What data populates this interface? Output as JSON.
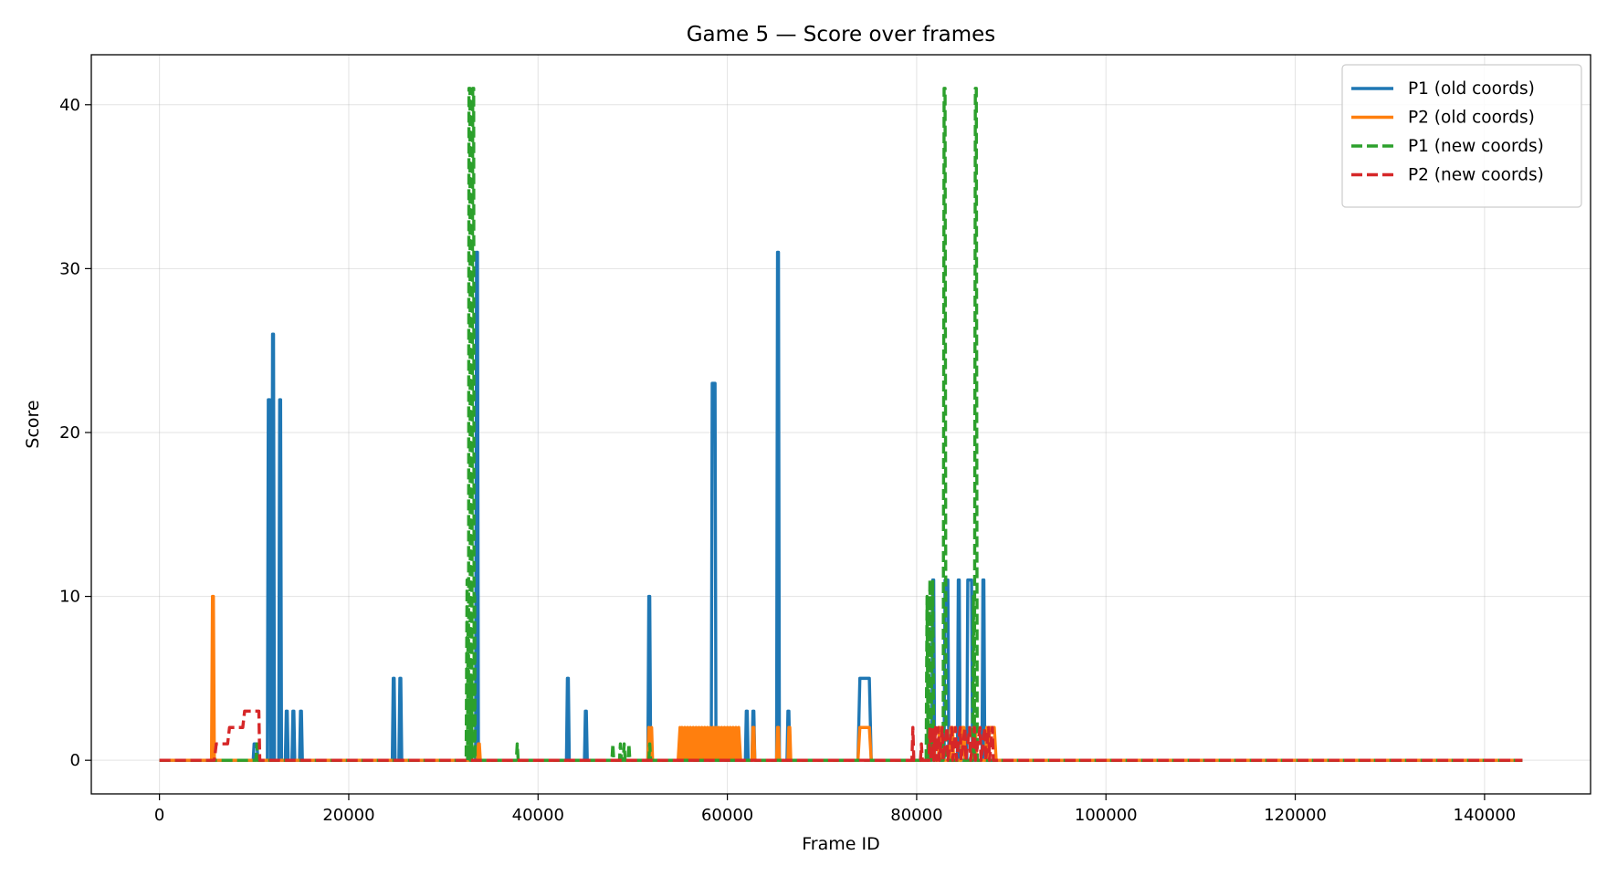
{
  "chart_data": {
    "type": "line",
    "title": "Game 5 — Score over frames",
    "xlabel": "Frame ID",
    "ylabel": "Score",
    "xlim": [
      -7200,
      151200
    ],
    "ylim": [
      -2.05,
      43.05
    ],
    "xticks": [
      0,
      20000,
      40000,
      60000,
      80000,
      100000,
      120000,
      140000
    ],
    "xtick_labels": [
      "0",
      "20000",
      "40000",
      "60000",
      "80000",
      "100000",
      "120000",
      "140000"
    ],
    "yticks": [
      0,
      10,
      20,
      30,
      40
    ],
    "ytick_labels": [
      "0",
      "10",
      "20",
      "30",
      "40"
    ],
    "grid": true,
    "legend_position": "upper right",
    "series": [
      {
        "name": "P1 (old coords)",
        "color": "#1f77b4",
        "dash": "solid",
        "points": [
          [
            0,
            0
          ],
          [
            9900,
            0
          ],
          [
            10000,
            1
          ],
          [
            10300,
            1
          ],
          [
            10400,
            0
          ],
          [
            11400,
            0
          ],
          [
            11500,
            22
          ],
          [
            11650,
            22
          ],
          [
            11750,
            0
          ],
          [
            11850,
            0
          ],
          [
            11950,
            26
          ],
          [
            12050,
            26
          ],
          [
            12150,
            0
          ],
          [
            12600,
            0
          ],
          [
            12700,
            22
          ],
          [
            12800,
            22
          ],
          [
            12900,
            0
          ],
          [
            13300,
            0
          ],
          [
            13400,
            3
          ],
          [
            13500,
            3
          ],
          [
            13600,
            0
          ],
          [
            14000,
            0
          ],
          [
            14100,
            3
          ],
          [
            14200,
            3
          ],
          [
            14300,
            0
          ],
          [
            14800,
            0
          ],
          [
            14900,
            3
          ],
          [
            15000,
            3
          ],
          [
            15100,
            0
          ],
          [
            24600,
            0
          ],
          [
            24700,
            5
          ],
          [
            24800,
            5
          ],
          [
            24900,
            0
          ],
          [
            25300,
            0
          ],
          [
            25400,
            5
          ],
          [
            25500,
            5
          ],
          [
            25600,
            0
          ],
          [
            33400,
            0
          ],
          [
            33500,
            31
          ],
          [
            33600,
            31
          ],
          [
            33700,
            0
          ],
          [
            43000,
            0
          ],
          [
            43100,
            5
          ],
          [
            43200,
            5
          ],
          [
            43300,
            0
          ],
          [
            44900,
            0
          ],
          [
            45000,
            3
          ],
          [
            45100,
            3
          ],
          [
            45200,
            0
          ],
          [
            51600,
            0
          ],
          [
            51700,
            10
          ],
          [
            51800,
            10
          ],
          [
            51900,
            0
          ],
          [
            58300,
            0
          ],
          [
            58400,
            23
          ],
          [
            58700,
            23
          ],
          [
            58800,
            0
          ],
          [
            61900,
            0
          ],
          [
            62000,
            3
          ],
          [
            62100,
            3
          ],
          [
            62200,
            0
          ],
          [
            62600,
            0
          ],
          [
            62700,
            3
          ],
          [
            62800,
            3
          ],
          [
            62900,
            0
          ],
          [
            65200,
            0
          ],
          [
            65300,
            31
          ],
          [
            65400,
            31
          ],
          [
            65500,
            0
          ],
          [
            66300,
            0
          ],
          [
            66400,
            3
          ],
          [
            66500,
            3
          ],
          [
            66600,
            0
          ],
          [
            73800,
            0
          ],
          [
            74000,
            5
          ],
          [
            75000,
            5
          ],
          [
            75200,
            0
          ],
          [
            81600,
            0
          ],
          [
            81700,
            11
          ],
          [
            81800,
            11
          ],
          [
            81900,
            0
          ],
          [
            82900,
            0
          ],
          [
            83000,
            11
          ],
          [
            83300,
            11
          ],
          [
            83400,
            0
          ],
          [
            84300,
            0
          ],
          [
            84400,
            11
          ],
          [
            84500,
            11
          ],
          [
            84600,
            0
          ],
          [
            85300,
            0
          ],
          [
            85400,
            11
          ],
          [
            85800,
            11
          ],
          [
            85900,
            0
          ],
          [
            86900,
            0
          ],
          [
            87000,
            11
          ],
          [
            87100,
            11
          ],
          [
            87200,
            0
          ],
          [
            144000,
            0
          ]
        ]
      },
      {
        "name": "P2 (old coords)",
        "color": "#ff7f0e",
        "dash": "solid",
        "points": [
          [
            0,
            0
          ],
          [
            5500,
            0
          ],
          [
            5600,
            10
          ],
          [
            5700,
            10
          ],
          [
            5800,
            0
          ],
          [
            33600,
            0
          ],
          [
            33700,
            1
          ],
          [
            33800,
            1
          ],
          [
            33900,
            0
          ],
          [
            51600,
            0
          ],
          [
            51700,
            2
          ],
          [
            51800,
            0
          ],
          [
            52000,
            2
          ],
          [
            52100,
            0
          ],
          [
            54800,
            0
          ],
          [
            55000,
            2
          ],
          [
            55100,
            0
          ],
          [
            55200,
            2
          ],
          [
            55400,
            0
          ],
          [
            55500,
            2
          ],
          [
            55700,
            0
          ],
          [
            55800,
            2
          ],
          [
            56000,
            0
          ],
          [
            56100,
            2
          ],
          [
            56300,
            0
          ],
          [
            56400,
            2
          ],
          [
            56600,
            0
          ],
          [
            56700,
            2
          ],
          [
            56900,
            0
          ],
          [
            57000,
            2
          ],
          [
            57200,
            0
          ],
          [
            57300,
            2
          ],
          [
            57500,
            0
          ],
          [
            57600,
            2
          ],
          [
            57800,
            0
          ],
          [
            57900,
            2
          ],
          [
            58100,
            0
          ],
          [
            58200,
            2
          ],
          [
            58400,
            0
          ],
          [
            58500,
            2
          ],
          [
            58700,
            0
          ],
          [
            58800,
            2
          ],
          [
            59000,
            0
          ],
          [
            59100,
            2
          ],
          [
            59300,
            0
          ],
          [
            59400,
            2
          ],
          [
            59600,
            0
          ],
          [
            59700,
            2
          ],
          [
            59900,
            0
          ],
          [
            60000,
            2
          ],
          [
            60200,
            0
          ],
          [
            60300,
            2
          ],
          [
            60500,
            0
          ],
          [
            60600,
            2
          ],
          [
            60800,
            0
          ],
          [
            60900,
            2
          ],
          [
            61100,
            0
          ],
          [
            61200,
            2
          ],
          [
            61400,
            0
          ],
          [
            62600,
            0
          ],
          [
            62700,
            2
          ],
          [
            62800,
            2
          ],
          [
            62900,
            0
          ],
          [
            65200,
            0
          ],
          [
            65300,
            2
          ],
          [
            65400,
            2
          ],
          [
            65500,
            0
          ],
          [
            66400,
            0
          ],
          [
            66500,
            2
          ],
          [
            66600,
            2
          ],
          [
            66700,
            0
          ],
          [
            73800,
            0
          ],
          [
            74000,
            2
          ],
          [
            75000,
            2
          ],
          [
            75200,
            0
          ],
          [
            81500,
            0
          ],
          [
            81600,
            2
          ],
          [
            81800,
            2
          ],
          [
            81900,
            0
          ],
          [
            82300,
            0
          ],
          [
            82400,
            2
          ],
          [
            82600,
            2
          ],
          [
            82700,
            0
          ],
          [
            83500,
            0
          ],
          [
            83600,
            2
          ],
          [
            83800,
            2
          ],
          [
            83900,
            0
          ],
          [
            84700,
            0
          ],
          [
            84800,
            2
          ],
          [
            85000,
            2
          ],
          [
            85100,
            0
          ],
          [
            85900,
            0
          ],
          [
            86000,
            2
          ],
          [
            86200,
            2
          ],
          [
            86300,
            0
          ],
          [
            87300,
            0
          ],
          [
            87400,
            2
          ],
          [
            87600,
            0
          ],
          [
            87700,
            2
          ],
          [
            88200,
            2
          ],
          [
            88400,
            0
          ],
          [
            144000,
            0
          ]
        ]
      },
      {
        "name": "P1 (new coords)",
        "color": "#2ca02c",
        "dash": "dashed",
        "points": [
          [
            0,
            0
          ],
          [
            10200,
            0
          ],
          [
            10300,
            1
          ],
          [
            10400,
            0
          ],
          [
            32400,
            0
          ],
          [
            32500,
            11
          ],
          [
            32550,
            0
          ],
          [
            32600,
            8
          ],
          [
            32650,
            0
          ],
          [
            32700,
            41
          ],
          [
            32800,
            41
          ],
          [
            32850,
            0
          ],
          [
            32950,
            5
          ],
          [
            33000,
            0
          ],
          [
            33100,
            41
          ],
          [
            33200,
            41
          ],
          [
            33250,
            0
          ],
          [
            33300,
            10
          ],
          [
            33350,
            0
          ],
          [
            37700,
            0
          ],
          [
            37800,
            1
          ],
          [
            37900,
            0
          ],
          [
            47800,
            0
          ],
          [
            47900,
            1
          ],
          [
            48000,
            0
          ],
          [
            48600,
            0
          ],
          [
            48700,
            1
          ],
          [
            48800,
            0
          ],
          [
            49000,
            0
          ],
          [
            49100,
            1
          ],
          [
            49200,
            0
          ],
          [
            49500,
            0
          ],
          [
            49600,
            1
          ],
          [
            49700,
            0
          ],
          [
            51700,
            0
          ],
          [
            51800,
            1
          ],
          [
            51900,
            0
          ],
          [
            81000,
            0
          ],
          [
            81100,
            10
          ],
          [
            81200,
            0
          ],
          [
            81400,
            11
          ],
          [
            81500,
            0
          ],
          [
            81700,
            11
          ],
          [
            81800,
            0
          ],
          [
            82800,
            0
          ],
          [
            82900,
            41
          ],
          [
            83000,
            41
          ],
          [
            83100,
            0
          ],
          [
            85900,
            0
          ],
          [
            86000,
            10
          ],
          [
            86100,
            0
          ],
          [
            86200,
            41
          ],
          [
            86300,
            41
          ],
          [
            86400,
            0
          ],
          [
            144000,
            0
          ]
        ]
      },
      {
        "name": "P2 (new coords)",
        "color": "#d62728",
        "dash": "dashed",
        "points": [
          [
            0,
            0
          ],
          [
            5800,
            0
          ],
          [
            6000,
            1
          ],
          [
            7200,
            1
          ],
          [
            7400,
            2
          ],
          [
            8800,
            2
          ],
          [
            9000,
            3
          ],
          [
            10500,
            3
          ],
          [
            10600,
            0
          ],
          [
            79500,
            0
          ],
          [
            79600,
            2
          ],
          [
            79700,
            0
          ],
          [
            80400,
            0
          ],
          [
            80500,
            1
          ],
          [
            80600,
            0
          ],
          [
            81300,
            0
          ],
          [
            81400,
            2
          ],
          [
            81500,
            0
          ],
          [
            81700,
            2
          ],
          [
            81800,
            0
          ],
          [
            82000,
            2
          ],
          [
            82100,
            0
          ],
          [
            82300,
            2
          ],
          [
            82400,
            0
          ],
          [
            82700,
            2
          ],
          [
            82800,
            0
          ],
          [
            83200,
            2
          ],
          [
            83300,
            0
          ],
          [
            83700,
            2
          ],
          [
            83800,
            0
          ],
          [
            84100,
            2
          ],
          [
            84200,
            0
          ],
          [
            84600,
            2
          ],
          [
            84700,
            0
          ],
          [
            85100,
            2
          ],
          [
            85200,
            0
          ],
          [
            85600,
            2
          ],
          [
            85700,
            0
          ],
          [
            86100,
            2
          ],
          [
            86200,
            0
          ],
          [
            86700,
            2
          ],
          [
            86800,
            0
          ],
          [
            87200,
            2
          ],
          [
            87300,
            0
          ],
          [
            87600,
            2
          ],
          [
            87700,
            0
          ],
          [
            88000,
            2
          ],
          [
            88100,
            0
          ],
          [
            144000,
            0
          ]
        ]
      }
    ]
  }
}
